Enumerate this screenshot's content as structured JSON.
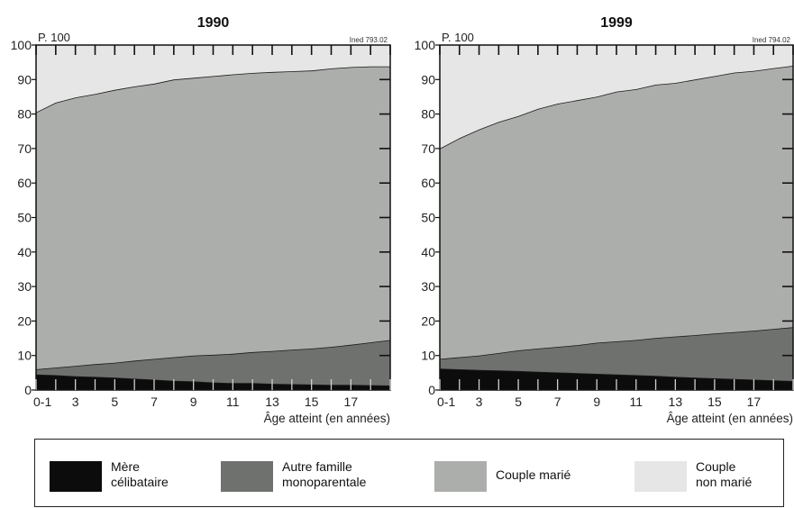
{
  "colors": {
    "mere_celibataire": "#0c0c0c",
    "autre_famille": "#6f716e",
    "couple_marie": "#acaeab",
    "couple_non_marie": "#e6e6e6"
  },
  "chart_data": [
    {
      "type": "area",
      "stacked": true,
      "title": "1990",
      "ylabel": "P. 100",
      "xlabel": "Âge atteint (en années)",
      "source": "Ined 793.02",
      "x": [
        0,
        1,
        2,
        3,
        4,
        5,
        6,
        7,
        8,
        9,
        10,
        11,
        12,
        13,
        14,
        15,
        16,
        17,
        18
      ],
      "xticks": [
        "0-1",
        "3",
        "5",
        "7",
        "9",
        "11",
        "13",
        "15",
        "17"
      ],
      "yticks": [
        0,
        10,
        20,
        30,
        40,
        50,
        60,
        70,
        80,
        90,
        100
      ],
      "ylim": [
        0,
        100
      ],
      "series": [
        {
          "name": "Mère célibataire",
          "values": [
            4.5,
            4.3,
            4.0,
            3.8,
            3.6,
            3.3,
            3.0,
            2.7,
            2.5,
            2.2,
            2.0,
            2.0,
            1.8,
            1.7,
            1.6,
            1.5,
            1.5,
            1.4,
            1.3
          ]
        },
        {
          "name": "Autre famille monoparentale",
          "values": [
            1.5,
            2.2,
            3.0,
            3.7,
            4.3,
            5.2,
            6.0,
            6.8,
            7.5,
            8.0,
            8.5,
            9.0,
            9.5,
            10.0,
            10.4,
            11.0,
            11.6,
            12.4,
            13.2
          ]
        },
        {
          "name": "Couple marié",
          "values": [
            74.5,
            76.8,
            77.8,
            78.3,
            79.1,
            79.5,
            79.8,
            80.5,
            80.5,
            80.8,
            81.0,
            80.9,
            80.9,
            80.7,
            80.6,
            80.7,
            80.5,
            80.0,
            79.3
          ]
        },
        {
          "name": "Couple non marié",
          "values": [
            19.5,
            16.7,
            15.2,
            14.2,
            13.0,
            12.0,
            11.2,
            10.0,
            9.5,
            9.0,
            8.5,
            8.1,
            7.8,
            7.6,
            7.4,
            6.8,
            6.4,
            6.2,
            6.2
          ]
        }
      ]
    },
    {
      "type": "area",
      "stacked": true,
      "title": "1999",
      "ylabel": "P. 100",
      "xlabel": "Âge atteint (en années)",
      "source": "Ined 794.02",
      "x": [
        0,
        1,
        2,
        3,
        4,
        5,
        6,
        7,
        8,
        9,
        10,
        11,
        12,
        13,
        14,
        15,
        16,
        17,
        18
      ],
      "xticks": [
        "0-1",
        "3",
        "5",
        "7",
        "9",
        "11",
        "13",
        "15",
        "17"
      ],
      "yticks": [
        0,
        10,
        20,
        30,
        40,
        50,
        60,
        70,
        80,
        90,
        100
      ],
      "ylim": [
        0,
        100
      ],
      "series": [
        {
          "name": "Mère célibataire",
          "values": [
            6.2,
            6.0,
            5.8,
            5.7,
            5.5,
            5.3,
            5.1,
            4.9,
            4.7,
            4.5,
            4.3,
            4.1,
            3.8,
            3.6,
            3.4,
            3.2,
            3.0,
            2.8,
            2.6
          ]
        },
        {
          "name": "Autre famille monoparentale",
          "values": [
            2.8,
            3.5,
            4.2,
            5.0,
            6.0,
            6.7,
            7.4,
            8.1,
            9.0,
            9.6,
            10.2,
            11.0,
            11.7,
            12.3,
            13.0,
            13.6,
            14.2,
            14.9,
            15.6
          ]
        },
        {
          "name": "Couple marié",
          "values": [
            61.0,
            63.5,
            65.5,
            67.0,
            67.9,
            69.5,
            70.5,
            71.0,
            71.3,
            72.4,
            72.7,
            73.4,
            73.5,
            74.1,
            74.6,
            75.2,
            75.3,
            75.6,
            75.8
          ]
        },
        {
          "name": "Couple non marié",
          "values": [
            30.0,
            27.0,
            24.5,
            22.3,
            20.6,
            18.5,
            17.0,
            16.0,
            15.0,
            13.5,
            12.8,
            11.5,
            11.0,
            10.0,
            9.0,
            8.0,
            7.5,
            6.7,
            6.0
          ]
        }
      ]
    }
  ],
  "legend": [
    {
      "lines": [
        "Mère",
        "célibataire"
      ],
      "color_key": "mere_celibataire"
    },
    {
      "lines": [
        "Autre famille",
        "monoparentale"
      ],
      "color_key": "autre_famille"
    },
    {
      "lines": [
        "Couple marié"
      ],
      "color_key": "couple_marie"
    },
    {
      "lines": [
        "Couple",
        "non marié"
      ],
      "color_key": "couple_non_marie"
    }
  ]
}
